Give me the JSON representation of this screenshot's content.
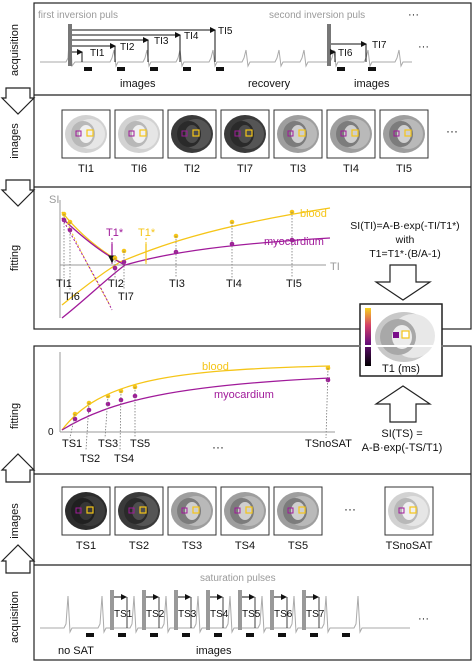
{
  "colors": {
    "blood": "#f5c518",
    "myocardium": "#a01a9a",
    "frame": "#222222",
    "muted": "#9a9a9a"
  },
  "top": {
    "rows": {
      "acquisition": "acquisition",
      "images": "images",
      "fitting": "fitting"
    },
    "acq": {
      "first_inversion": "first inversion puls",
      "second_inversion": "second inversion puls",
      "ellipsis": "···",
      "ti_labels": [
        "TI1",
        "TI2",
        "TI3",
        "TI4",
        "TI5",
        "TI6",
        "TI7"
      ],
      "images_label_1": "images",
      "recovery_label": "recovery",
      "images_label_2": "images"
    },
    "image_row": {
      "labels": [
        "TI1",
        "TI6",
        "TI2",
        "TI7",
        "TI3",
        "TI4",
        "TI5"
      ],
      "ellipsis": "···"
    },
    "fit": {
      "y_label": "SI",
      "x_label": "TI",
      "t1star_myo": "T1*",
      "t1star_blood": "T1*",
      "blood": "blood",
      "myocardium": "myocardium",
      "x_ticks": [
        "TI1",
        "TI6",
        "TI2",
        "TI7",
        "TI3",
        "TI4",
        "TI5"
      ],
      "equation_1": "SI(TI)=A-B·exp(-TI/T1*)",
      "equation_2": "with",
      "equation_3": "T1=T1*·(B/A-1)"
    }
  },
  "map": {
    "label": "T1 (ms)"
  },
  "bottom": {
    "rows": {
      "fitting": "fitting",
      "images": "images",
      "acquisition": "acquisition"
    },
    "fit": {
      "zero": "0",
      "blood": "blood",
      "myocardium": "myocardium",
      "x_ticks": [
        "TS1",
        "TS2",
        "TS3",
        "TS4",
        "TS5",
        "···",
        "TSnoSAT"
      ],
      "equation_1": "SI(TS) =",
      "equation_2": "A-B·exp(-TS/T1)"
    },
    "image_row": {
      "labels": [
        "TS1",
        "TS2",
        "TS3",
        "TS4",
        "TS5",
        "TSnoSAT"
      ],
      "ellipsis": "···"
    },
    "acq": {
      "saturation": "saturation pulses",
      "ts_labels": [
        "TS1",
        "TS2",
        "TS3",
        "TS4",
        "TS5",
        "TS6",
        "TS7"
      ],
      "no_sat": "no SAT",
      "images": "images",
      "ellipsis": "···"
    }
  }
}
